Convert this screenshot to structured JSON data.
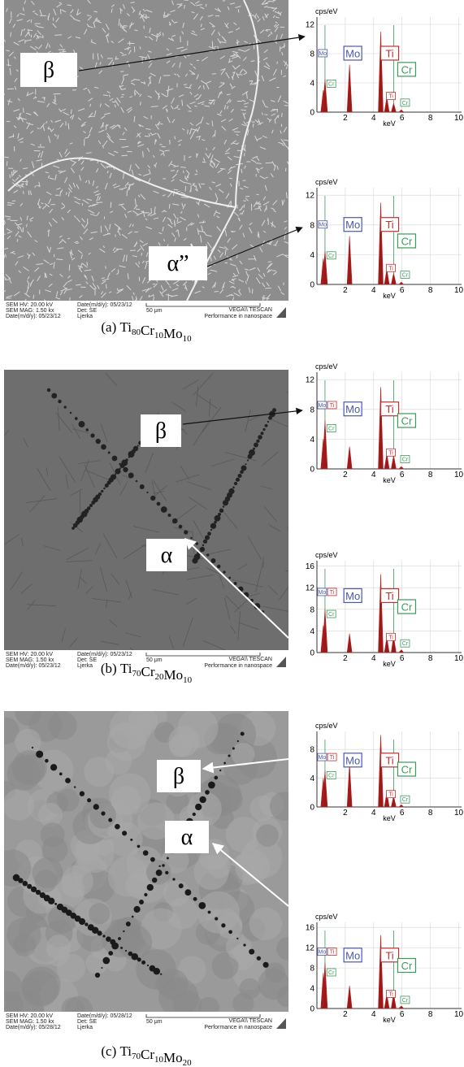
{
  "panels": [
    {
      "label": "(a)",
      "alloy": [
        {
          "symbol": "Ti",
          "sub": "80"
        },
        {
          "symbol": "Cr",
          "sub": "10"
        },
        {
          "symbol": "Mo",
          "sub": "10"
        }
      ],
      "phases": [
        "β",
        "α”"
      ],
      "sem": {
        "hv": "SEM HV: 20.00 kV",
        "mag": "SEM MAG: 1.50 kx",
        "date": "Date(m/d/y): 05/23/12",
        "date2": "Date(m/d/y): 05/23/12",
        "det": "Det: SE",
        "operator": "Ljerka",
        "scale": "50 μm",
        "brand": "VEGA\\\\ TESCAN",
        "slogan": "Performance in nanospace"
      },
      "spectra": [
        {
          "type": "spectrum",
          "ylabel": "cps/eV",
          "xlabel": "keV",
          "xlim": [
            0,
            10.2
          ],
          "ylim": [
            0,
            13
          ],
          "xticks": [
            2,
            4,
            6,
            8,
            10
          ],
          "yticks": [
            0,
            4,
            8,
            12
          ],
          "grid": true,
          "labels": [
            {
              "text": "Mo",
              "color": "#4a58a8"
            },
            {
              "text": "Cr",
              "color": "#3a9a5a"
            },
            {
              "text": "Mo",
              "color": "#4a58a8"
            },
            {
              "text": "Ti",
              "color": "#c03030"
            },
            {
              "text": "Cr",
              "color": "#3a9a5a"
            },
            {
              "text": "Ti",
              "color": "#c03030"
            },
            {
              "text": "Cr",
              "color": "#3a9a5a"
            }
          ],
          "peaks": [
            {
              "kev": 0.45,
              "cps": 3
            },
            {
              "kev": 0.57,
              "cps": 4.5
            },
            {
              "kev": 2.3,
              "cps": 6.5
            },
            {
              "kev": 4.5,
              "cps": 11
            },
            {
              "kev": 4.93,
              "cps": 2
            },
            {
              "kev": 5.41,
              "cps": 1.2
            },
            {
              "kev": 5.95,
              "cps": 0.3
            }
          ]
        },
        {
          "type": "spectrum",
          "ylabel": "cps/eV",
          "xlabel": "keV",
          "xlim": [
            0,
            10.2
          ],
          "ylim": [
            0,
            13
          ],
          "xticks": [
            2,
            4,
            6,
            8,
            10
          ],
          "yticks": [
            0,
            4,
            8,
            12
          ],
          "grid": true,
          "labels": [
            {
              "text": "Mo",
              "color": "#4a58a8"
            },
            {
              "text": "Cr",
              "color": "#3a9a5a"
            },
            {
              "text": "Mo",
              "color": "#4a58a8"
            },
            {
              "text": "Ti",
              "color": "#c03030"
            },
            {
              "text": "Cr",
              "color": "#3a9a5a"
            },
            {
              "text": "Ti",
              "color": "#c03030"
            },
            {
              "text": "Cr",
              "color": "#3a9a5a"
            }
          ],
          "peaks": [
            {
              "kev": 0.45,
              "cps": 3.5
            },
            {
              "kev": 0.57,
              "cps": 4.5
            },
            {
              "kev": 2.3,
              "cps": 6.5
            },
            {
              "kev": 4.5,
              "cps": 11
            },
            {
              "kev": 4.93,
              "cps": 2
            },
            {
              "kev": 5.41,
              "cps": 1.5
            },
            {
              "kev": 5.95,
              "cps": 0.3
            }
          ]
        }
      ]
    },
    {
      "label": "(b)",
      "alloy": [
        {
          "symbol": "Ti",
          "sub": "70"
        },
        {
          "symbol": "Cr",
          "sub": "20"
        },
        {
          "symbol": "Mo",
          "sub": "10"
        }
      ],
      "phases": [
        "β",
        "α"
      ],
      "sem": {
        "hv": "SEM HV: 20.00 kV",
        "mag": "SEM MAG: 1.50 kx",
        "date": "Date(m/d/y): 05/23/12",
        "date2": "Date(m/d/y): 05/23/12",
        "det": "Det: SE",
        "operator": "Ljerka",
        "scale": "50 μm",
        "brand": "VEGA\\\\ TESCAN",
        "slogan": "Performance in nanospace"
      },
      "spectra": [
        {
          "type": "spectrum",
          "ylabel": "cps/eV",
          "xlabel": "keV",
          "xlim": [
            0,
            10.2
          ],
          "ylim": [
            0,
            13
          ],
          "xticks": [
            2,
            4,
            6,
            8,
            10
          ],
          "yticks": [
            0,
            4,
            8,
            12
          ],
          "grid": true,
          "labels": [
            {
              "text": "Mo",
              "color": "#4a58a8"
            },
            {
              "text": "Ti",
              "color": "#c03030"
            },
            {
              "text": "Cr",
              "color": "#3a9a5a"
            },
            {
              "text": "Mo",
              "color": "#4a58a8"
            },
            {
              "text": "Ti",
              "color": "#c03030"
            },
            {
              "text": "Cr",
              "color": "#3a9a5a"
            },
            {
              "text": "Ti",
              "color": "#c03030"
            },
            {
              "text": "Cr",
              "color": "#3a9a5a"
            }
          ],
          "peaks": [
            {
              "kev": 0.45,
              "cps": 4
            },
            {
              "kev": 0.57,
              "cps": 6.5
            },
            {
              "kev": 2.3,
              "cps": 3
            },
            {
              "kev": 4.5,
              "cps": 11
            },
            {
              "kev": 4.93,
              "cps": 2
            },
            {
              "kev": 5.41,
              "cps": 1.8
            },
            {
              "kev": 5.95,
              "cps": 0.3
            }
          ]
        },
        {
          "type": "spectrum",
          "ylabel": "cps/eV",
          "xlabel": "keV",
          "xlim": [
            0,
            10.2
          ],
          "ylim": [
            0,
            17
          ],
          "xticks": [
            2,
            4,
            6,
            8,
            10
          ],
          "yticks": [
            0,
            4,
            8,
            12,
            16
          ],
          "grid": true,
          "labels": [
            {
              "text": "Mo",
              "color": "#4a58a8"
            },
            {
              "text": "Ti",
              "color": "#c03030"
            },
            {
              "text": "Cr",
              "color": "#3a9a5a"
            },
            {
              "text": "Mo",
              "color": "#4a58a8"
            },
            {
              "text": "Ti",
              "color": "#c03030"
            },
            {
              "text": "Cr",
              "color": "#3a9a5a"
            },
            {
              "text": "Ti",
              "color": "#c03030"
            },
            {
              "text": "Cr",
              "color": "#3a9a5a"
            }
          ],
          "peaks": [
            {
              "kev": 0.45,
              "cps": 5
            },
            {
              "kev": 0.57,
              "cps": 8
            },
            {
              "kev": 2.3,
              "cps": 3.5
            },
            {
              "kev": 4.5,
              "cps": 14.5
            },
            {
              "kev": 4.93,
              "cps": 2.8
            },
            {
              "kev": 5.41,
              "cps": 3
            },
            {
              "kev": 5.95,
              "cps": 0.5
            }
          ]
        }
      ]
    },
    {
      "label": "(c)",
      "alloy": [
        {
          "symbol": "Ti",
          "sub": "70"
        },
        {
          "symbol": "Cr",
          "sub": "10"
        },
        {
          "symbol": "Mo",
          "sub": "20"
        }
      ],
      "phases": [
        "β",
        "α"
      ],
      "sem": {
        "hv": "SEM HV: 20.00 kV",
        "mag": "SEM MAG: 1.50 kx",
        "date": "Date(m/d/y): 05/28/12",
        "date2": "Date(m/d/y): 05/28/12",
        "det": "Det: SE",
        "operator": "Ljerka",
        "scale": "50 μm",
        "brand": "VEGA\\\\ TESCAN",
        "slogan": "Performance in nanospace"
      },
      "spectra": [
        {
          "type": "spectrum",
          "ylabel": "cps/eV",
          "xlabel": "keV",
          "xlim": [
            0,
            10.2
          ],
          "ylim": [
            0,
            10.5
          ],
          "xticks": [
            2,
            4,
            6,
            8,
            10
          ],
          "yticks": [
            0,
            4,
            8
          ],
          "grid": true,
          "labels": [
            {
              "text": "Mo",
              "color": "#4a58a8"
            },
            {
              "text": "Ti",
              "color": "#c03030"
            },
            {
              "text": "Cr",
              "color": "#3a9a5a"
            },
            {
              "text": "Mo",
              "color": "#4a58a8"
            },
            {
              "text": "Ti",
              "color": "#c03030"
            },
            {
              "text": "Cr",
              "color": "#3a9a5a"
            },
            {
              "text": "Ti",
              "color": "#c03030"
            },
            {
              "text": "Cr",
              "color": "#3a9a5a"
            }
          ],
          "peaks": [
            {
              "kev": 0.45,
              "cps": 4
            },
            {
              "kev": 0.57,
              "cps": 5
            },
            {
              "kev": 2.3,
              "cps": 6
            },
            {
              "kev": 4.5,
              "cps": 10
            },
            {
              "kev": 4.93,
              "cps": 2
            },
            {
              "kev": 5.41,
              "cps": 1.5
            },
            {
              "kev": 5.95,
              "cps": 0.3
            }
          ]
        },
        {
          "type": "spectrum",
          "ylabel": "cps/eV",
          "xlabel": "keV",
          "xlim": [
            0,
            10.2
          ],
          "ylim": [
            0,
            17
          ],
          "xticks": [
            2,
            4,
            6,
            8,
            10
          ],
          "yticks": [
            0,
            4,
            8,
            12,
            16
          ],
          "grid": true,
          "labels": [
            {
              "text": "Mo",
              "color": "#4a58a8"
            },
            {
              "text": "Ti",
              "color": "#c03030"
            },
            {
              "text": "Cr",
              "color": "#3a9a5a"
            },
            {
              "text": "Mo",
              "color": "#4a58a8"
            },
            {
              "text": "Ti",
              "color": "#c03030"
            },
            {
              "text": "Cr",
              "color": "#3a9a5a"
            },
            {
              "text": "Ti",
              "color": "#c03030"
            },
            {
              "text": "Cr",
              "color": "#3a9a5a"
            }
          ],
          "peaks": [
            {
              "kev": 0.45,
              "cps": 7
            },
            {
              "kev": 0.57,
              "cps": 9
            },
            {
              "kev": 2.3,
              "cps": 4.5
            },
            {
              "kev": 4.5,
              "cps": 14.5
            },
            {
              "kev": 4.93,
              "cps": 2.8
            },
            {
              "kev": 5.41,
              "cps": 3
            },
            {
              "kev": 5.95,
              "cps": 0.5
            }
          ]
        }
      ]
    }
  ]
}
